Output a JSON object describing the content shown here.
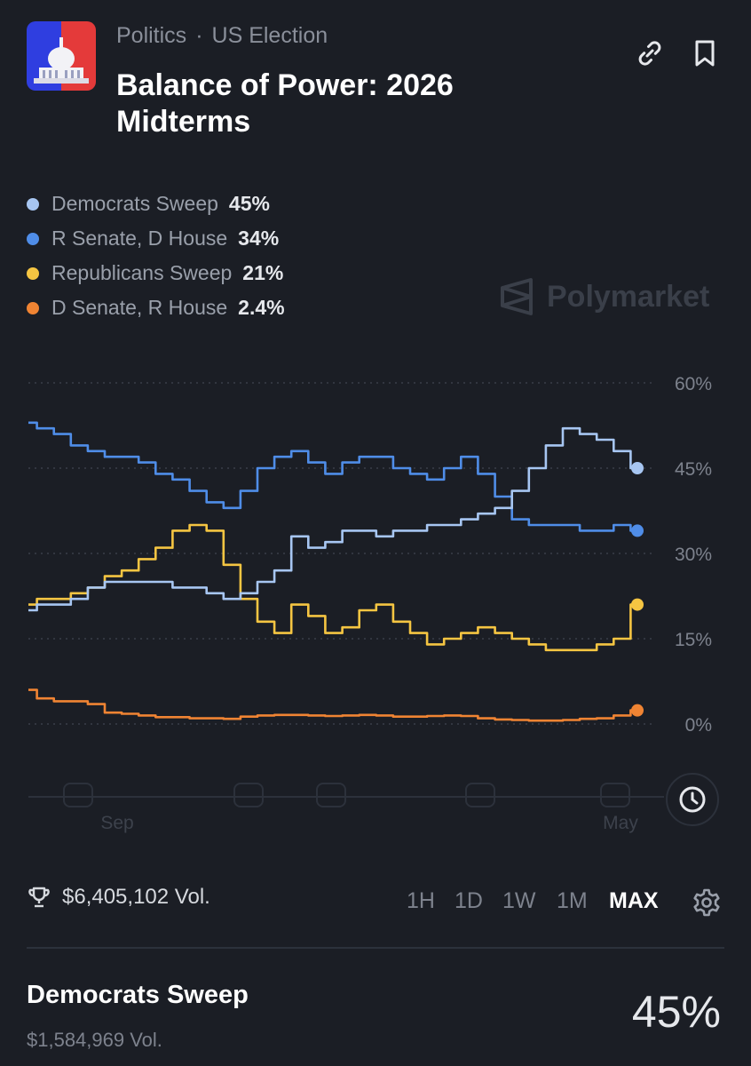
{
  "header": {
    "category": "Politics",
    "subcategory": "US Election",
    "title": "Balance of Power: 2026 Midterms"
  },
  "watermark": "Polymarket",
  "volume": {
    "total": "$6,405,102 Vol."
  },
  "ranges": [
    {
      "label": "1H",
      "active": false
    },
    {
      "label": "1D",
      "active": false
    },
    {
      "label": "1W",
      "active": false
    },
    {
      "label": "1M",
      "active": false
    },
    {
      "label": "MAX",
      "active": true
    }
  ],
  "market": {
    "name": "Democrats Sweep",
    "volume": "$1,584,969 Vol.",
    "probability": "45%"
  },
  "colors": {
    "background": "#1b1e25",
    "democrats_sweep": "#a7c6f2",
    "r_senate_d_house": "#4f8de8",
    "republicans_sweep": "#f5c542",
    "d_senate_r_house": "#f08433"
  },
  "icons": [
    "link-icon",
    "bookmark-icon",
    "clock-icon",
    "trophy-icon",
    "gear-icon",
    "polymarket-logo-icon",
    "capitol-thumbnail"
  ],
  "chart_data": {
    "type": "line",
    "x_ticks": [
      "Sep",
      "May"
    ],
    "y_ticks": [
      "60%",
      "45%",
      "30%",
      "15%",
      "0%"
    ],
    "ylim": [
      0,
      60
    ],
    "grid": true,
    "legend_placement": "top-left",
    "series": [
      {
        "name": "Democrats Sweep",
        "label": "45%",
        "color": "#a7c6f2",
        "values": [
          20,
          21,
          21,
          22,
          24,
          25,
          25,
          25,
          25,
          24,
          24,
          23,
          22,
          23,
          25,
          27,
          33,
          31,
          32,
          34,
          34,
          33,
          34,
          34,
          35,
          35,
          36,
          37,
          38,
          41,
          45,
          49,
          52,
          51,
          50,
          48,
          45
        ]
      },
      {
        "name": "R Senate, D House",
        "label": "34%",
        "color": "#4f8de8",
        "values": [
          53,
          52,
          51,
          49,
          48,
          47,
          47,
          46,
          44,
          43,
          41,
          39,
          38,
          41,
          45,
          47,
          48,
          46,
          44,
          46,
          47,
          47,
          45,
          44,
          43,
          45,
          47,
          44,
          40,
          36,
          35,
          35,
          35,
          34,
          34,
          35,
          34
        ]
      },
      {
        "name": "Republicans Sweep",
        "label": "21%",
        "color": "#f5c542",
        "values": [
          21,
          22,
          22,
          23,
          24,
          26,
          27,
          29,
          31,
          34,
          35,
          34,
          28,
          22,
          18,
          16,
          21,
          19,
          16,
          17,
          20,
          21,
          18,
          16,
          14,
          15,
          16,
          17,
          16,
          15,
          14,
          13,
          13,
          13,
          14,
          15,
          21
        ]
      },
      {
        "name": "D Senate, R House",
        "label": "2.4%",
        "color": "#f08433",
        "values": [
          6,
          4.5,
          4,
          4,
          3.5,
          2,
          1.8,
          1.5,
          1.2,
          1.2,
          1,
          1,
          0.9,
          1.3,
          1.5,
          1.6,
          1.6,
          1.5,
          1.4,
          1.5,
          1.6,
          1.5,
          1.3,
          1.3,
          1.4,
          1.5,
          1.4,
          1,
          0.8,
          0.7,
          0.6,
          0.6,
          0.7,
          0.9,
          1,
          1.5,
          2.4
        ]
      }
    ]
  }
}
